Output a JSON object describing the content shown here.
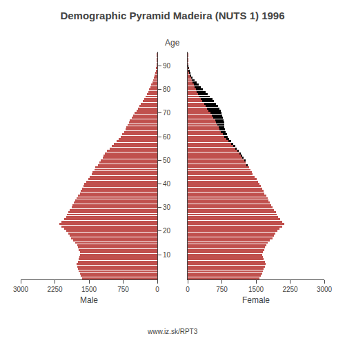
{
  "chart_data": [
    {
      "type": "bar",
      "title": "Demographic Pyramid Madeira (NUTS 1) 1996",
      "orientation": "horizontal",
      "xlabel": "Male",
      "ylabel": "Age",
      "annotations": [
        "www.iz.sk/RPT3"
      ],
      "grid": false,
      "categories": [
        0,
        1,
        2,
        3,
        4,
        5,
        6,
        7,
        8,
        9,
        10,
        11,
        12,
        13,
        14,
        15,
        16,
        17,
        18,
        19,
        20,
        21,
        22,
        23,
        24,
        25,
        26,
        27,
        28,
        29,
        30,
        31,
        32,
        33,
        34,
        35,
        36,
        37,
        38,
        39,
        40,
        41,
        42,
        43,
        44,
        45,
        46,
        47,
        48,
        49,
        50,
        51,
        52,
        53,
        54,
        55,
        56,
        57,
        58,
        59,
        60,
        61,
        62,
        63,
        64,
        65,
        66,
        67,
        68,
        69,
        70,
        71,
        72,
        73,
        74,
        75,
        76,
        77,
        78,
        79,
        80,
        81,
        82,
        83,
        84,
        85,
        86,
        87,
        88,
        89,
        90,
        91,
        92,
        93,
        94,
        95
      ],
      "xlim": [
        3000,
        0
      ],
      "xticks": [
        3000,
        2250,
        1500,
        750,
        0
      ],
      "ylim": [
        -0.5,
        96
      ],
      "yticks": [
        10,
        20,
        30,
        40,
        50,
        60,
        70,
        80,
        90
      ],
      "series": [
        {
          "color": "#c0504d",
          "values": [
            1650,
            1680,
            1700,
            1720,
            1740,
            1760,
            1780,
            1750,
            1730,
            1710,
            1690,
            1700,
            1720,
            1740,
            1760,
            1800,
            1850,
            1900,
            1920,
            1950,
            2000,
            2050,
            2100,
            2150,
            2100,
            2050,
            2000,
            1980,
            1950,
            1920,
            1880,
            1860,
            1830,
            1800,
            1780,
            1750,
            1700,
            1680,
            1650,
            1620,
            1600,
            1560,
            1520,
            1480,
            1440,
            1420,
            1380,
            1360,
            1300,
            1280,
            1250,
            1200,
            1180,
            1150,
            1100,
            1050,
            1000,
            950,
            900,
            850,
            800,
            770,
            730,
            700,
            680,
            650,
            620,
            600,
            560,
            530,
            500,
            460,
            430,
            390,
            360,
            320,
            290,
            260,
            230,
            200,
            175,
            150,
            130,
            110,
            90,
            70,
            55,
            40,
            30,
            20,
            13,
            8,
            5,
            3,
            2,
            1
          ]
        }
      ]
    },
    {
      "type": "bar",
      "orientation": "horizontal",
      "stacked": true,
      "xlabel": "Female",
      "grid": false,
      "tick_labels": "x",
      "categories": [
        0,
        1,
        2,
        3,
        4,
        5,
        6,
        7,
        8,
        9,
        10,
        11,
        12,
        13,
        14,
        15,
        16,
        17,
        18,
        19,
        20,
        21,
        22,
        23,
        24,
        25,
        26,
        27,
        28,
        29,
        30,
        31,
        32,
        33,
        34,
        35,
        36,
        37,
        38,
        39,
        40,
        41,
        42,
        43,
        44,
        45,
        46,
        47,
        48,
        49,
        50,
        51,
        52,
        53,
        54,
        55,
        56,
        57,
        58,
        59,
        60,
        61,
        62,
        63,
        64,
        65,
        66,
        67,
        68,
        69,
        70,
        71,
        72,
        73,
        74,
        75,
        76,
        77,
        78,
        79,
        80,
        81,
        82,
        83,
        84,
        85,
        86,
        87,
        88,
        89,
        90,
        91,
        92,
        93,
        94,
        95
      ],
      "xlim": [
        0,
        3000
      ],
      "xticks": [
        0,
        750,
        1500,
        2250,
        3000
      ],
      "ylim": [
        -0.5,
        96
      ],
      "yticks": [
        10,
        20,
        30,
        40,
        50,
        60,
        70,
        80,
        90
      ],
      "series": [
        {
          "color": "#c0504d",
          "values": [
            1580,
            1610,
            1630,
            1650,
            1670,
            1700,
            1710,
            1690,
            1670,
            1650,
            1630,
            1650,
            1680,
            1700,
            1720,
            1750,
            1800,
            1860,
            1890,
            1920,
            1970,
            2020,
            2070,
            2120,
            2080,
            2030,
            1990,
            1960,
            1940,
            1900,
            1870,
            1840,
            1810,
            1780,
            1760,
            1730,
            1680,
            1660,
            1640,
            1610,
            1580,
            1550,
            1510,
            1470,
            1430,
            1410,
            1380,
            1350,
            1300,
            1280,
            1250,
            1200,
            1180,
            1150,
            1100,
            1050,
            1000,
            950,
            900,
            850,
            800,
            770,
            730,
            700,
            680,
            650,
            620,
            600,
            560,
            530,
            500,
            460,
            430,
            390,
            360,
            320,
            290,
            260,
            230,
            200,
            175,
            150,
            130,
            110,
            90,
            70,
            55,
            40,
            30,
            20,
            13,
            8,
            5,
            3,
            2,
            1
          ]
        },
        {
          "color": "#000000",
          "values": [
            null,
            null,
            null,
            null,
            null,
            null,
            null,
            null,
            null,
            null,
            null,
            null,
            null,
            null,
            null,
            null,
            null,
            null,
            null,
            null,
            null,
            null,
            null,
            null,
            null,
            null,
            null,
            null,
            null,
            null,
            null,
            null,
            null,
            null,
            null,
            null,
            null,
            null,
            null,
            null,
            null,
            null,
            null,
            null,
            null,
            null,
            null,
            null,
            10,
            null,
            10,
            20,
            10,
            10,
            20,
            30,
            40,
            50,
            60,
            60,
            80,
            90,
            100,
            120,
            130,
            150,
            180,
            190,
            220,
            230,
            240,
            260,
            260,
            270,
            260,
            260,
            250,
            230,
            210,
            190,
            165,
            140,
            110,
            80,
            60,
            40,
            25,
            15,
            5,
            2,
            1,
            null,
            null,
            null,
            null,
            null
          ]
        }
      ]
    }
  ]
}
